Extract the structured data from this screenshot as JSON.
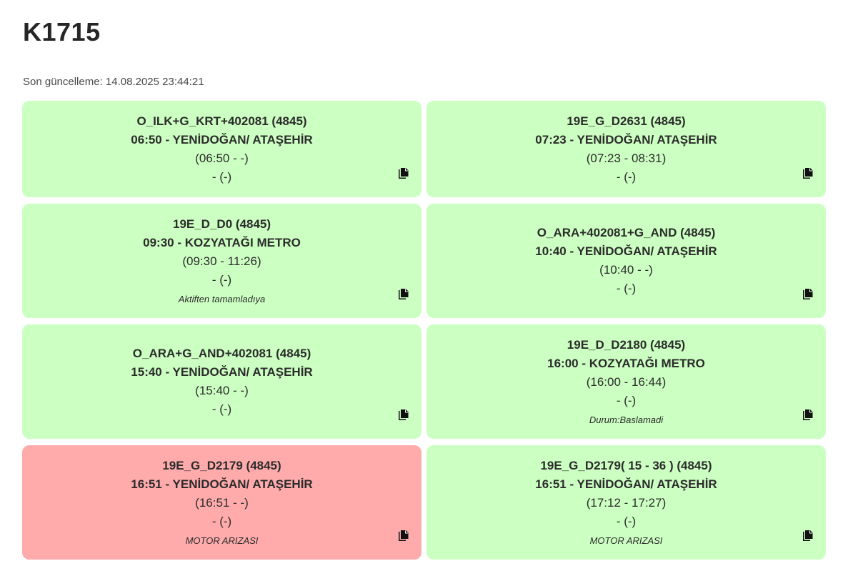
{
  "header": {
    "title": "K1715",
    "last_update": "Son güncelleme: 14.08.2025 23:44:21"
  },
  "colors": {
    "ok": "#ccffc2",
    "alert": "#ffabab"
  },
  "trips": [
    {
      "code": "O_ILK+G_KRT+402081 (4845)",
      "departure": "06:50 - YENİDOĞAN/ ATAŞEHİR",
      "time_range": "(06:50 - -)",
      "extra": "- (-)",
      "note": "",
      "status": "ok",
      "icon": "copy-icon"
    },
    {
      "code": "19E_G_D2631 (4845)",
      "departure": "07:23 - YENİDOĞAN/ ATAŞEHİR",
      "time_range": "(07:23 - 08:31)",
      "extra": "- (-)",
      "note": "",
      "status": "ok",
      "icon": "copy-icon"
    },
    {
      "code": "19E_D_D0 (4845)",
      "departure": "09:30 - KOZYATAĞI METRO",
      "time_range": "(09:30 - 11:26)",
      "extra": "- (-)",
      "note": "Aktiften tamamladıya",
      "status": "ok",
      "icon": "copy-icon"
    },
    {
      "code": "O_ARA+402081+G_AND (4845)",
      "departure": "10:40 - YENİDOĞAN/ ATAŞEHİR",
      "time_range": "(10:40 - -)",
      "extra": "- (-)",
      "note": "",
      "status": "ok",
      "icon": "copy-icon"
    },
    {
      "code": "O_ARA+G_AND+402081 (4845)",
      "departure": "15:40 - YENİDOĞAN/ ATAŞEHİR",
      "time_range": "(15:40 - -)",
      "extra": "- (-)",
      "note": "",
      "status": "ok",
      "icon": "copy-icon"
    },
    {
      "code": "19E_D_D2180 (4845)",
      "departure": "16:00 - KOZYATAĞI METRO",
      "time_range": "(16:00 - 16:44)",
      "extra": "- (-)",
      "note": "Durum:Baslamadi",
      "status": "ok",
      "icon": "copy-icon"
    },
    {
      "code": "19E_G_D2179 (4845)",
      "departure": "16:51 - YENİDOĞAN/ ATAŞEHİR",
      "time_range": "(16:51 - -)",
      "extra": "- (-)",
      "note": "MOTOR ARIZASI",
      "status": "alert",
      "icon": "copy-icon"
    },
    {
      "code": "19E_G_D2179( 15 - 36 ) (4845)",
      "departure": "16:51 - YENİDOĞAN/ ATAŞEHİR",
      "time_range": "(17:12 - 17:27)",
      "extra": "- (-)",
      "note": "MOTOR ARIZASI",
      "status": "ok",
      "icon": "copy-icon"
    }
  ]
}
